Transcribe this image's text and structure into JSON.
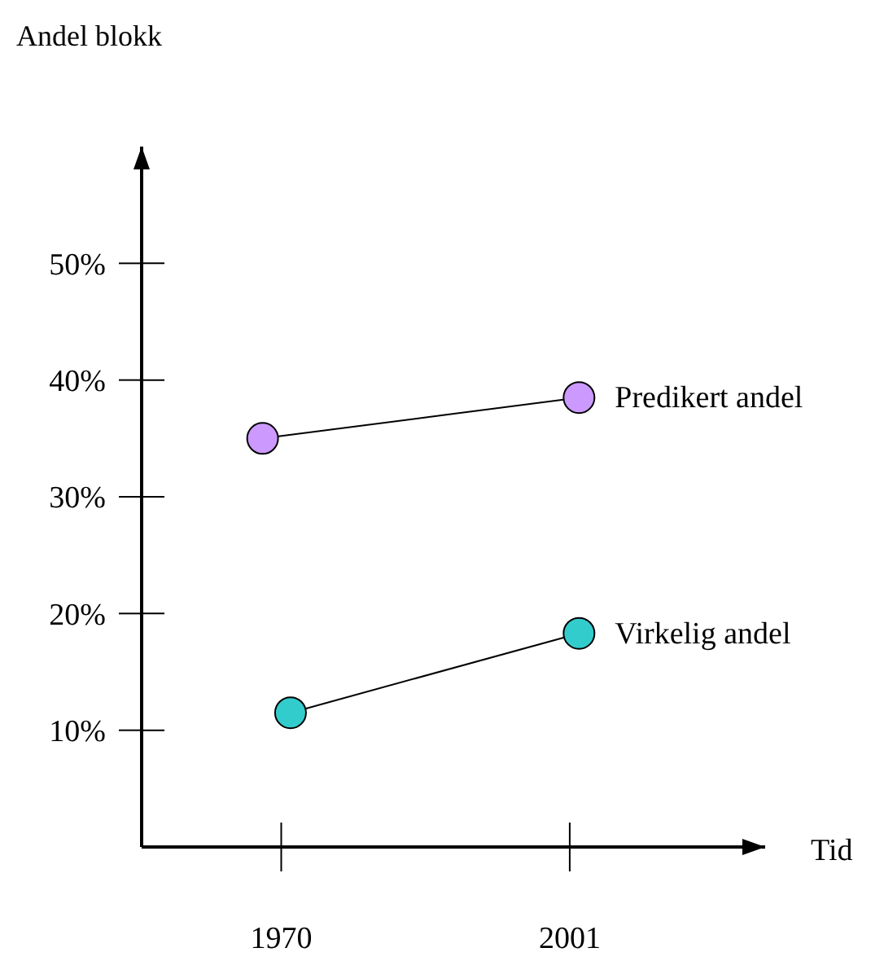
{
  "chart_data": {
    "type": "line",
    "ylabel": "Andel blokk",
    "xlabel": "Tid",
    "xlim": [
      1955,
      2022
    ],
    "ylim": [
      0,
      60
    ],
    "xticks": [
      1970,
      2001
    ],
    "yticks": [
      {
        "value": 10,
        "label": "10%"
      },
      {
        "value": 20,
        "label": "20%"
      },
      {
        "value": 30,
        "label": "30%"
      },
      {
        "value": 40,
        "label": "40%"
      },
      {
        "value": 50,
        "label": "50%"
      }
    ],
    "marker": "circle",
    "line_style": "solid",
    "legend": "right",
    "series": [
      {
        "name": "Predikert andel",
        "color": "#cc99ff",
        "x": [
          1968,
          2002
        ],
        "values": [
          35,
          38.5
        ]
      },
      {
        "name": "Virkelig andel",
        "color": "#33cccc",
        "x": [
          1971,
          2002
        ],
        "values": [
          11.5,
          18.3
        ]
      }
    ]
  }
}
